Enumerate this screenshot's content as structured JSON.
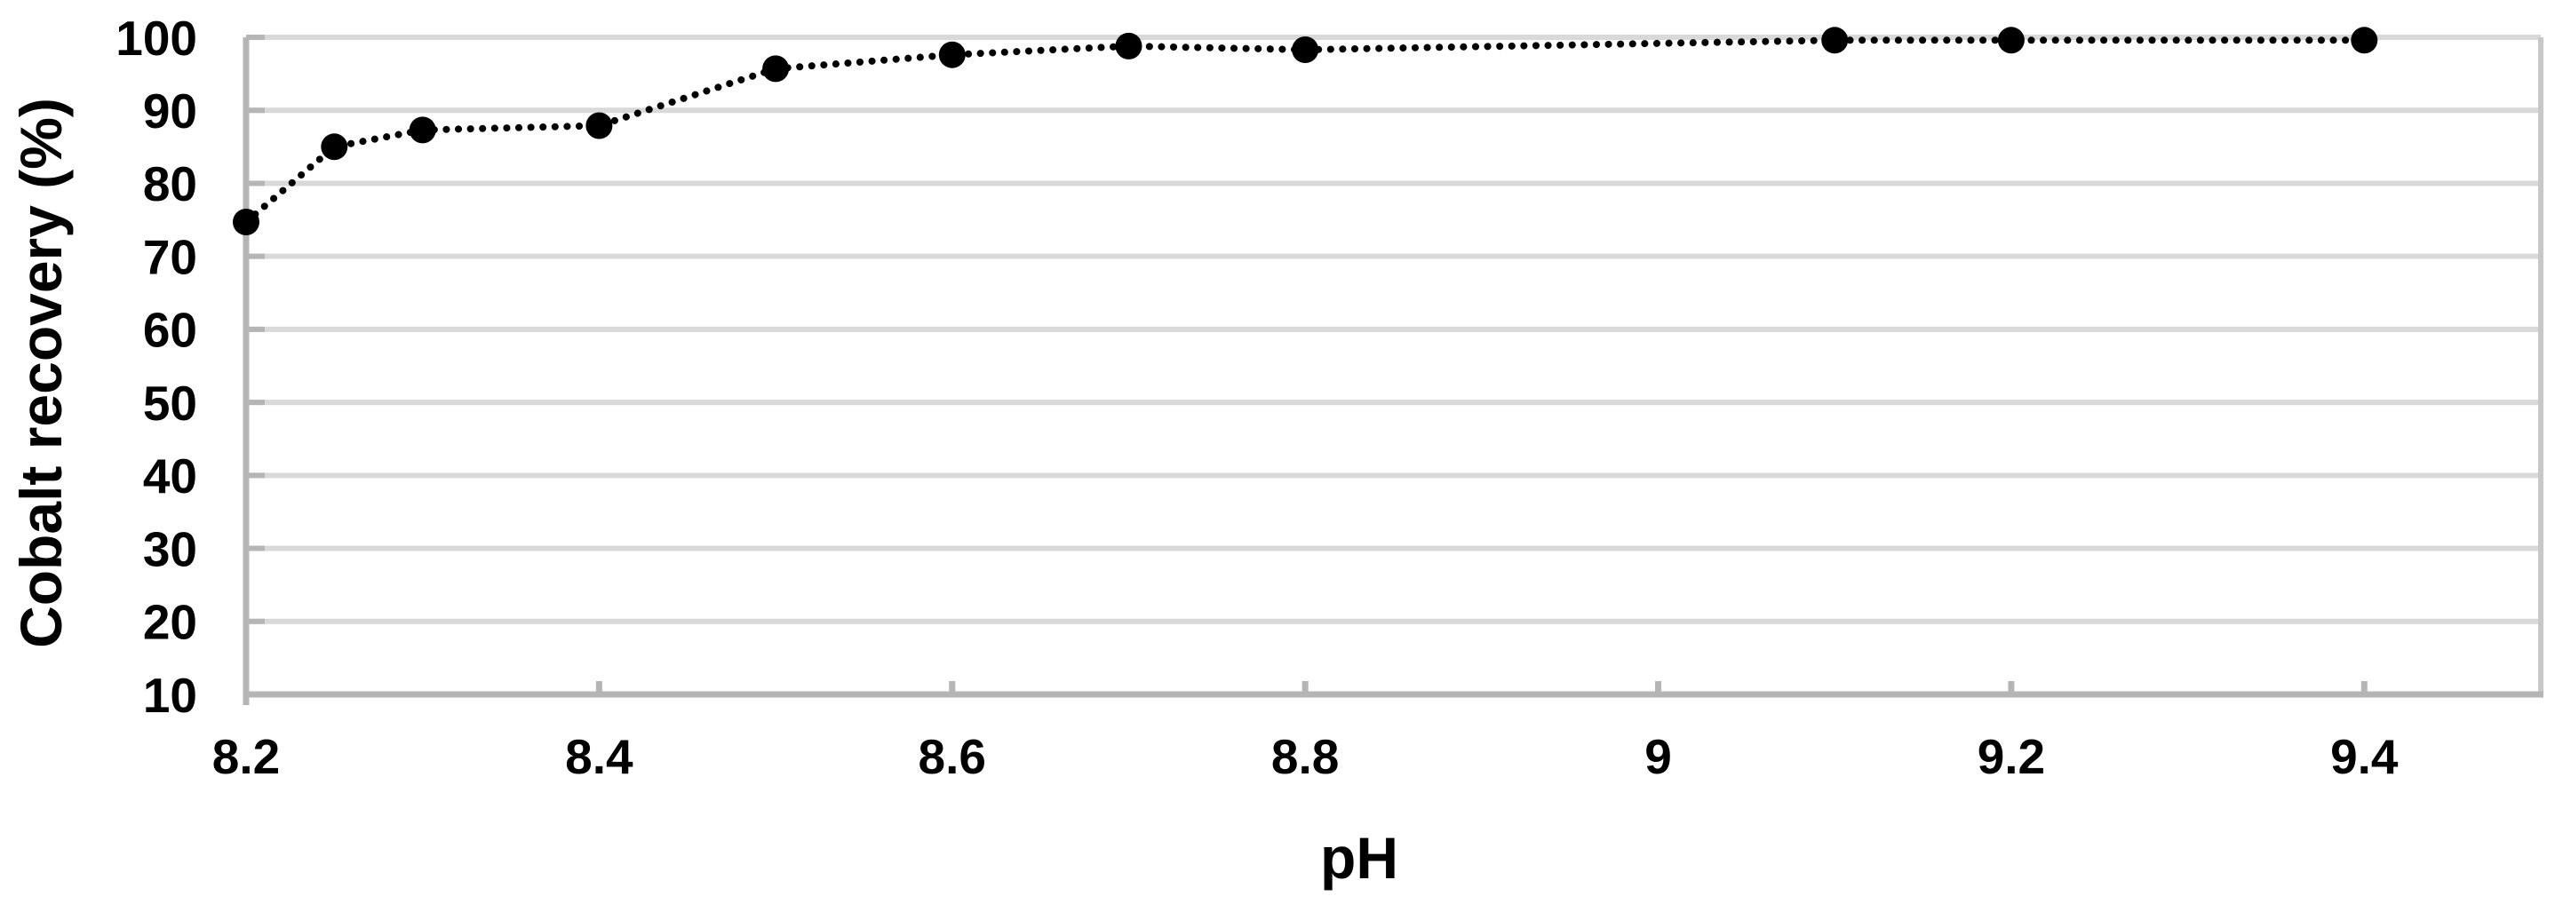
{
  "chart_data": {
    "type": "scatter",
    "title": "",
    "xlabel": "pH",
    "ylabel": "Cobalt recovery (%)",
    "legend": "none",
    "grid": "horizontal-major",
    "series": [
      {
        "name": "Cobalt recovery",
        "marker": "filled-black-circle",
        "line_style": "dotted",
        "points": [
          {
            "x": 8.2,
            "y": 74.7
          },
          {
            "x": 8.25,
            "y": 85.0
          },
          {
            "x": 8.3,
            "y": 87.3
          },
          {
            "x": 8.4,
            "y": 87.9
          },
          {
            "x": 8.5,
            "y": 95.7
          },
          {
            "x": 8.6,
            "y": 97.6
          },
          {
            "x": 8.7,
            "y": 98.8
          },
          {
            "x": 8.8,
            "y": 98.3
          },
          {
            "x": 9.1,
            "y": 99.6
          },
          {
            "x": 9.2,
            "y": 99.6
          },
          {
            "x": 9.4,
            "y": 99.6
          }
        ]
      }
    ],
    "x_axis": {
      "min": 8.2,
      "max": 9.5,
      "tick_values": [
        8.2,
        8.4,
        8.6,
        8.8,
        9,
        9.2,
        9.4
      ],
      "tick_labels": [
        "8.2",
        "8.4",
        "8.6",
        "8.8",
        "9",
        "9.2",
        "9.4"
      ]
    },
    "y_axis": {
      "min": 10,
      "max": 100,
      "tick_values": [
        10,
        20,
        30,
        40,
        50,
        60,
        70,
        80,
        90,
        100
      ],
      "tick_labels": [
        "10",
        "20",
        "30",
        "40",
        "50",
        "60",
        "70",
        "80",
        "90",
        "100"
      ]
    },
    "colors": {
      "marker": "#000000",
      "line": "#000000",
      "text": "#000000",
      "gridline": "#d9d9d9",
      "axis": "#b5b5b5",
      "plot_border_right": "#c8c8c8",
      "background": "#ffffff"
    }
  }
}
